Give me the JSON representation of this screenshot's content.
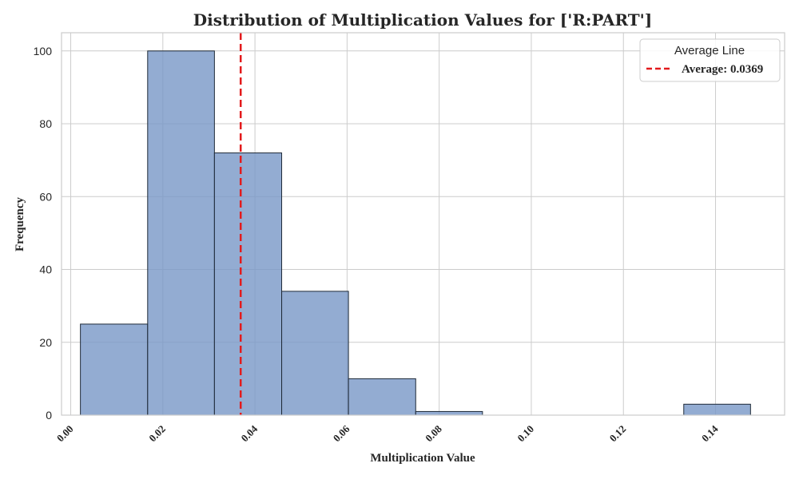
{
  "chart_data": {
    "type": "bar",
    "subtype": "histogram",
    "title": "Distribution of Multiplication Values for ['R:PART']",
    "xlabel": "Multiplication Value",
    "ylabel": "Frequency",
    "xlim": [
      -0.002,
      0.155
    ],
    "ylim": [
      0,
      105
    ],
    "xticks": [
      0.0,
      0.02,
      0.04,
      0.06,
      0.08,
      0.1,
      0.12,
      0.14
    ],
    "xtick_labels": [
      "0.00",
      "0.02",
      "0.04",
      "0.06",
      "0.08",
      "0.10",
      "0.12",
      "0.14"
    ],
    "yticks": [
      0,
      20,
      40,
      60,
      80,
      100
    ],
    "ytick_labels": [
      "0",
      "20",
      "40",
      "60",
      "80",
      "100"
    ],
    "bins": [
      {
        "start": 0.0021,
        "end": 0.0167,
        "count": 25
      },
      {
        "start": 0.0167,
        "end": 0.0312,
        "count": 100
      },
      {
        "start": 0.0312,
        "end": 0.0458,
        "count": 72
      },
      {
        "start": 0.0458,
        "end": 0.0603,
        "count": 34
      },
      {
        "start": 0.0603,
        "end": 0.0749,
        "count": 10
      },
      {
        "start": 0.0749,
        "end": 0.0894,
        "count": 1
      },
      {
        "start": 0.0894,
        "end": 0.104,
        "count": 0
      },
      {
        "start": 0.104,
        "end": 0.1185,
        "count": 0
      },
      {
        "start": 0.1185,
        "end": 0.1331,
        "count": 0
      },
      {
        "start": 0.1331,
        "end": 0.1476,
        "count": 3
      }
    ],
    "average": 0.0369,
    "grid": true,
    "legend": {
      "title": "Average Line",
      "label": "Average: 0.0369",
      "placement": "top-right"
    },
    "colors": {
      "bar_fill": "#7897c7",
      "bar_edge": "#1f2a38",
      "average_line": "#e31a1c",
      "grid": "#cccccc",
      "spine": "#cccccc"
    }
  }
}
